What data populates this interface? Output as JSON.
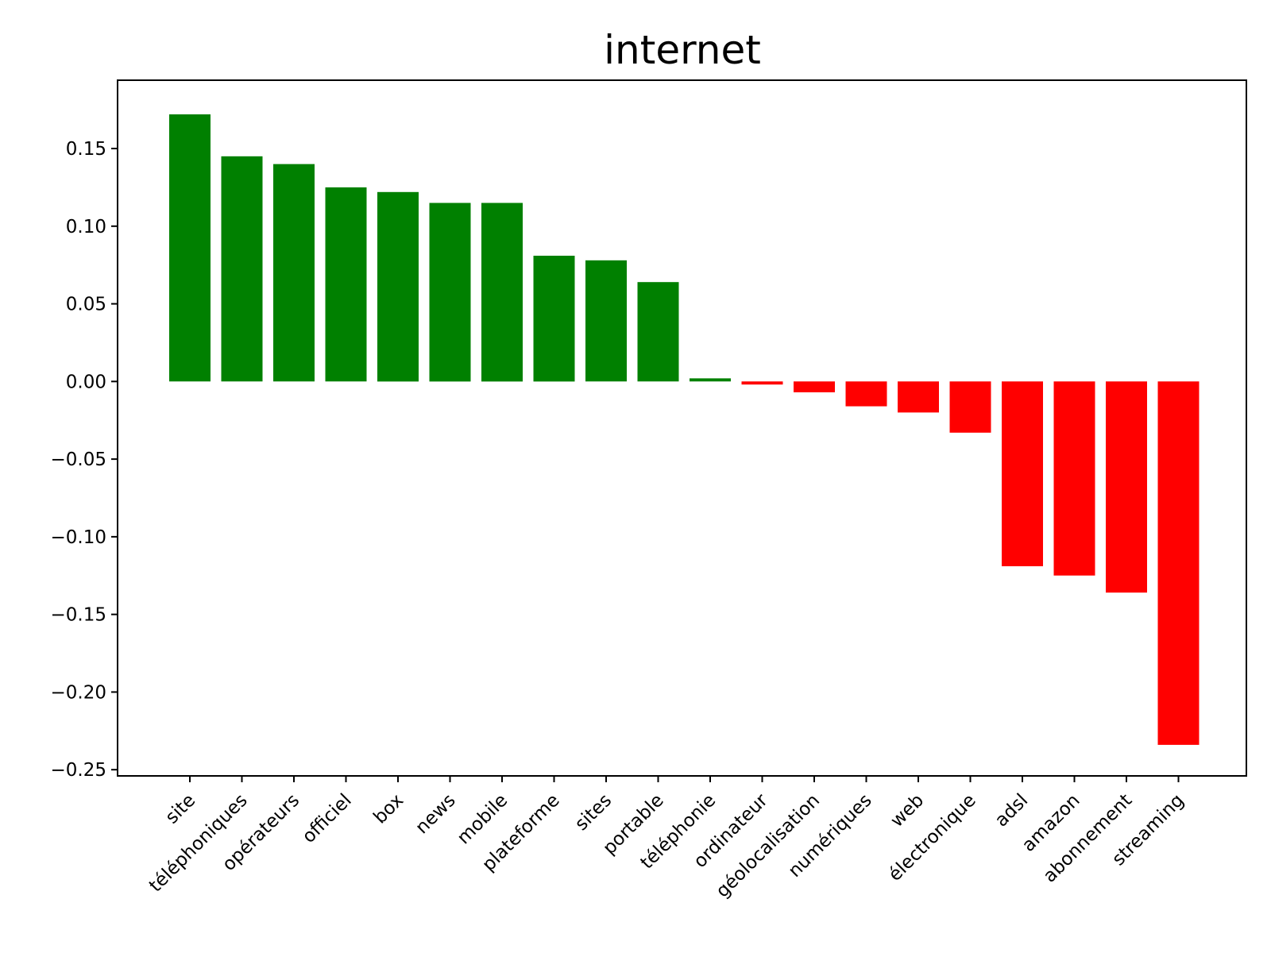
{
  "chart_data": {
    "type": "bar",
    "title": "internet",
    "xlabel": "",
    "ylabel": "",
    "categories": [
      "site",
      "téléphoniques",
      "opérateurs",
      "officiel",
      "box",
      "news",
      "mobile",
      "plateforme",
      "sites",
      "portable",
      "téléphonie",
      "ordinateur",
      "géolocalisation",
      "numériques",
      "web",
      "électronique",
      "adsl",
      "amazon",
      "abonnement",
      "streaming"
    ],
    "values": [
      0.172,
      0.145,
      0.14,
      0.125,
      0.122,
      0.115,
      0.115,
      0.081,
      0.078,
      0.064,
      0.002,
      -0.002,
      -0.007,
      -0.016,
      -0.02,
      -0.033,
      -0.119,
      -0.125,
      -0.136,
      -0.234
    ],
    "ylim": [
      -0.254,
      0.194
    ],
    "yticks": [
      0.15,
      0.1,
      0.05,
      0.0,
      -0.05,
      -0.1,
      -0.15,
      -0.2,
      -0.25
    ],
    "ytick_labels": [
      "0.15",
      "0.10",
      "0.05",
      "0.00",
      "−0.05",
      "−0.10",
      "−0.15",
      "−0.20",
      "−0.25"
    ],
    "colors": {
      "positive": "#008000",
      "negative": "#ff0000"
    },
    "grid": false,
    "legend": "none"
  }
}
